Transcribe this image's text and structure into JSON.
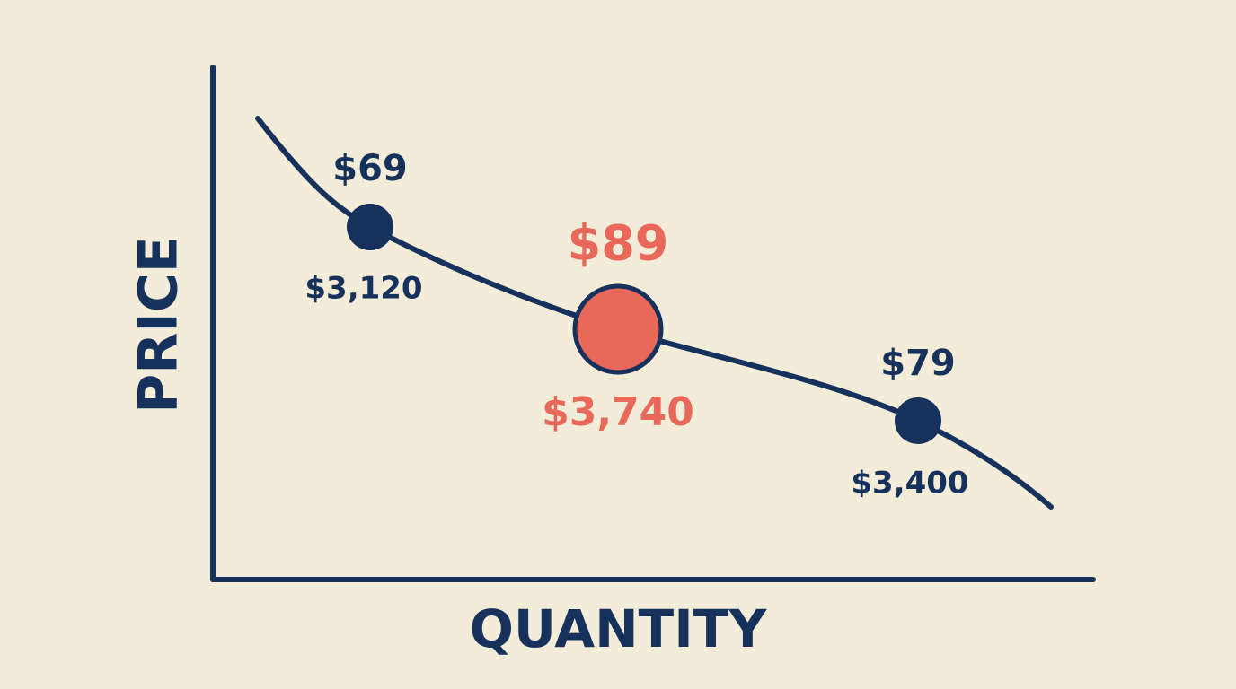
{
  "axes": {
    "x_label": "QUANTITY",
    "y_label": "PRICE"
  },
  "points": [
    {
      "price": "$69",
      "revenue": "$3,120",
      "color": "#16325c"
    },
    {
      "price": "$89",
      "revenue": "$3,740",
      "color": "#e8685a"
    },
    {
      "price": "$79",
      "revenue": "$3,400",
      "color": "#16325c"
    }
  ]
}
